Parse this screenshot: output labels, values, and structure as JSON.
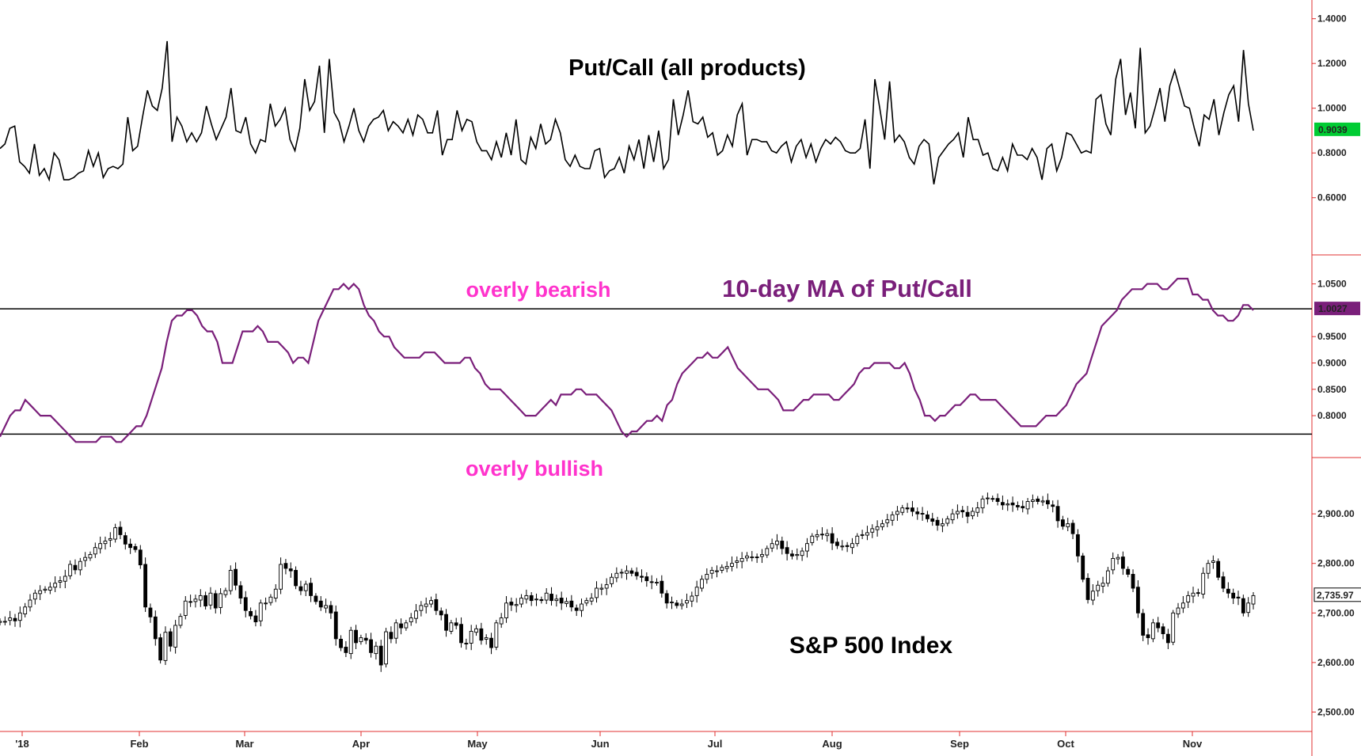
{
  "chart_data": [
    {
      "type": "line",
      "title": "Put/Call (all products)",
      "y_ticks": [
        "0.6000",
        "0.8000",
        "1.0000",
        "1.2000",
        "1.4000"
      ],
      "ylim": [
        0.5,
        1.42
      ],
      "last_value_label": "0.9039",
      "color": "#000000",
      "badge_color": "#00cc33",
      "series": [
        {
          "values": [
            0.82,
            0.84,
            0.91,
            0.92,
            0.76,
            0.74,
            0.71,
            0.84,
            0.7,
            0.73,
            0.68,
            0.8,
            0.77,
            0.68,
            0.68,
            0.69,
            0.71,
            0.72,
            0.81,
            0.74,
            0.8,
            0.69,
            0.73,
            0.74,
            0.73,
            0.75,
            0.96,
            0.81,
            0.83,
            0.96,
            1.08,
            1.01,
            0.99,
            1.09,
            1.3,
            0.85,
            0.96,
            0.92,
            0.85,
            0.89,
            0.85,
            0.89,
            1.01,
            0.93,
            0.86,
            0.91,
            0.96,
            1.09,
            0.9,
            0.89,
            0.96,
            0.84,
            0.8,
            0.86,
            0.85,
            1.02,
            0.92,
            0.95,
            1.0,
            0.86,
            0.81,
            0.91,
            1.13,
            0.99,
            1.03,
            1.19,
            0.89,
            1.22,
            0.98,
            0.94,
            0.85,
            0.92,
            1.0,
            0.9,
            0.85,
            0.92,
            0.95,
            0.96,
            0.99,
            0.9,
            0.94,
            0.92,
            0.89,
            0.95,
            0.88,
            0.97,
            0.95,
            0.89,
            0.89,
            0.99,
            0.79,
            0.86,
            0.86,
            0.99,
            0.9,
            0.95,
            0.94,
            0.85,
            0.81,
            0.81,
            0.77,
            0.85,
            0.78,
            0.89,
            0.79,
            0.95,
            0.77,
            0.75,
            0.87,
            0.82,
            0.93,
            0.84,
            0.86,
            0.95,
            0.89,
            0.77,
            0.74,
            0.79,
            0.74,
            0.73,
            0.73,
            0.81,
            0.82,
            0.69,
            0.72,
            0.73,
            0.78,
            0.71,
            0.83,
            0.77,
            0.86,
            0.73,
            0.88,
            0.76,
            0.9,
            0.73,
            0.77,
            1.04,
            0.88,
            0.97,
            1.08,
            0.94,
            0.93,
            0.96,
            0.87,
            0.89,
            0.79,
            0.81,
            0.88,
            0.83,
            0.97,
            1.02,
            0.79,
            0.86,
            0.86,
            0.85,
            0.85,
            0.81,
            0.8,
            0.83,
            0.85,
            0.76,
            0.83,
            0.86,
            0.78,
            0.84,
            0.76,
            0.82,
            0.86,
            0.84,
            0.87,
            0.85,
            0.81,
            0.8,
            0.8,
            0.82,
            0.95,
            0.73,
            1.13,
            1.0,
            0.86,
            1.12,
            0.85,
            0.88,
            0.85,
            0.78,
            0.75,
            0.83,
            0.86,
            0.84,
            0.66,
            0.78,
            0.81,
            0.84,
            0.86,
            0.89,
            0.78,
            0.96,
            0.86,
            0.86,
            0.79,
            0.8,
            0.73,
            0.72,
            0.78,
            0.72,
            0.84,
            0.79,
            0.79,
            0.77,
            0.82,
            0.78,
            0.68,
            0.82,
            0.84,
            0.72,
            0.78,
            0.89,
            0.88,
            0.84,
            0.8,
            0.81,
            0.8,
            1.04,
            1.06,
            0.93,
            0.88,
            1.13,
            1.22,
            0.97,
            1.07,
            0.91,
            1.27,
            0.89,
            0.92,
            1.0,
            1.09,
            0.94,
            1.1,
            1.17,
            1.09,
            1.01,
            1.0,
            0.91,
            0.83,
            0.97,
            0.95,
            1.04,
            0.88,
            0.98,
            1.06,
            1.1,
            0.94,
            1.26,
            1.02,
            0.9
          ]
        }
      ]
    },
    {
      "type": "line",
      "title": "10-day MA of Put/Call",
      "annotations": [
        "overly bearish",
        "overly bullish"
      ],
      "y_ticks": [
        "0.8000",
        "0.8500",
        "0.9000",
        "0.9500",
        "1.0500"
      ],
      "ylim": [
        0.74,
        1.075
      ],
      "upper_threshold": 1.0027,
      "lower_threshold": 0.765,
      "last_value_label": "1.0027",
      "color": "#7a1f7a",
      "annotation_color": "#ff33cc",
      "title_color": "#7a1f7a",
      "series": [
        {
          "values": [
            0.76,
            0.78,
            0.8,
            0.81,
            0.81,
            0.83,
            0.82,
            0.81,
            0.8,
            0.8,
            0.8,
            0.79,
            0.78,
            0.77,
            0.76,
            0.75,
            0.75,
            0.75,
            0.75,
            0.75,
            0.76,
            0.76,
            0.76,
            0.75,
            0.75,
            0.76,
            0.77,
            0.78,
            0.78,
            0.8,
            0.83,
            0.86,
            0.89,
            0.94,
            0.98,
            0.99,
            0.99,
            1.0,
            1.0,
            0.99,
            0.97,
            0.96,
            0.96,
            0.94,
            0.9,
            0.9,
            0.9,
            0.93,
            0.96,
            0.96,
            0.96,
            0.97,
            0.96,
            0.94,
            0.94,
            0.94,
            0.93,
            0.92,
            0.9,
            0.91,
            0.91,
            0.9,
            0.94,
            0.98,
            1.0,
            1.02,
            1.04,
            1.04,
            1.05,
            1.04,
            1.05,
            1.04,
            1.01,
            0.99,
            0.98,
            0.96,
            0.95,
            0.95,
            0.93,
            0.92,
            0.91,
            0.91,
            0.91,
            0.91,
            0.92,
            0.92,
            0.92,
            0.91,
            0.9,
            0.9,
            0.9,
            0.9,
            0.91,
            0.91,
            0.89,
            0.88,
            0.86,
            0.85,
            0.85,
            0.85,
            0.84,
            0.83,
            0.82,
            0.81,
            0.8,
            0.8,
            0.8,
            0.81,
            0.82,
            0.83,
            0.82,
            0.84,
            0.84,
            0.84,
            0.85,
            0.85,
            0.84,
            0.84,
            0.84,
            0.83,
            0.82,
            0.81,
            0.79,
            0.77,
            0.76,
            0.77,
            0.77,
            0.78,
            0.79,
            0.79,
            0.8,
            0.79,
            0.82,
            0.83,
            0.86,
            0.88,
            0.89,
            0.9,
            0.91,
            0.91,
            0.92,
            0.91,
            0.91,
            0.92,
            0.93,
            0.91,
            0.89,
            0.88,
            0.87,
            0.86,
            0.85,
            0.85,
            0.85,
            0.84,
            0.83,
            0.81,
            0.81,
            0.81,
            0.82,
            0.83,
            0.83,
            0.84,
            0.84,
            0.84,
            0.84,
            0.83,
            0.83,
            0.84,
            0.85,
            0.86,
            0.88,
            0.89,
            0.89,
            0.9,
            0.9,
            0.9,
            0.9,
            0.89,
            0.89,
            0.9,
            0.88,
            0.85,
            0.83,
            0.8,
            0.8,
            0.79,
            0.8,
            0.8,
            0.81,
            0.82,
            0.82,
            0.83,
            0.84,
            0.84,
            0.83,
            0.83,
            0.83,
            0.83,
            0.82,
            0.81,
            0.8,
            0.79,
            0.78,
            0.78,
            0.78,
            0.78,
            0.79,
            0.8,
            0.8,
            0.8,
            0.81,
            0.82,
            0.84,
            0.86,
            0.87,
            0.88,
            0.91,
            0.94,
            0.97,
            0.98,
            0.99,
            1.0,
            1.02,
            1.03,
            1.04,
            1.04,
            1.04,
            1.05,
            1.05,
            1.05,
            1.04,
            1.04,
            1.05,
            1.06,
            1.06,
            1.06,
            1.03,
            1.03,
            1.02,
            1.02,
            1.0,
            0.99,
            0.99,
            0.98,
            0.98,
            0.99,
            1.01,
            1.01,
            1.0
          ]
        }
      ]
    },
    {
      "type": "candlestick",
      "title": "S&P 500 Index",
      "y_ticks": [
        "2,500.00",
        "2,600.00",
        "2,700.00",
        "2,800.00",
        "2,900.00"
      ],
      "ylim": [
        2480,
        3020
      ],
      "last_value_label": "2,735.97",
      "color": "#000000",
      "x_labels": [
        "'18",
        "Feb",
        "Mar",
        "Apr",
        "May",
        "Jun",
        "Jul",
        "Aug",
        "Sep",
        "Oct",
        "Nov"
      ],
      "closes": [
        2683,
        2683,
        2690,
        2684,
        2700,
        2712,
        2726,
        2740,
        2745,
        2748,
        2752,
        2760,
        2765,
        2774,
        2798,
        2787,
        2804,
        2812,
        2818,
        2832,
        2840,
        2845,
        2850,
        2872,
        2858,
        2839,
        2832,
        2828,
        2797,
        2712,
        2692,
        2648,
        2605,
        2661,
        2633,
        2675,
        2693,
        2724,
        2722,
        2728,
        2735,
        2714,
        2740,
        2710,
        2739,
        2745,
        2786,
        2756,
        2730,
        2705,
        2694,
        2682,
        2720,
        2720,
        2732,
        2748,
        2798,
        2790,
        2785,
        2755,
        2745,
        2758,
        2735,
        2723,
        2712,
        2715,
        2700,
        2648,
        2630,
        2620,
        2665,
        2640,
        2650,
        2645,
        2620,
        2633,
        2595,
        2662,
        2648,
        2680,
        2670,
        2680,
        2690,
        2704,
        2715,
        2718,
        2725,
        2705,
        2696,
        2665,
        2680,
        2675,
        2640,
        2638,
        2663,
        2668,
        2645,
        2650,
        2630,
        2680,
        2690,
        2720,
        2716,
        2717,
        2730,
        2735,
        2725,
        2728,
        2725,
        2740,
        2725,
        2728,
        2720,
        2723,
        2712,
        2705,
        2718,
        2725,
        2730,
        2750,
        2750,
        2757,
        2772,
        2780,
        2782,
        2785,
        2780,
        2775,
        2772,
        2765,
        2762,
        2762,
        2740,
        2720,
        2722,
        2715,
        2718,
        2725,
        2734,
        2752,
        2768,
        2778,
        2786,
        2785,
        2792,
        2794,
        2800,
        2805,
        2810,
        2815,
        2813,
        2812,
        2818,
        2830,
        2840,
        2845,
        2830,
        2820,
        2815,
        2818,
        2825,
        2840,
        2855,
        2858,
        2858,
        2860,
        2841,
        2836,
        2835,
        2834,
        2840,
        2855,
        2858,
        2862,
        2870,
        2874,
        2880,
        2888,
        2898,
        2905,
        2912,
        2910,
        2905,
        2900,
        2900,
        2890,
        2885,
        2877,
        2880,
        2890,
        2900,
        2905,
        2904,
        2895,
        2905,
        2912,
        2930,
        2932,
        2930,
        2925,
        2918,
        2920,
        2918,
        2914,
        2912,
        2925,
        2928,
        2925,
        2926,
        2920,
        2915,
        2886,
        2875,
        2880,
        2860,
        2815,
        2768,
        2727,
        2744,
        2756,
        2760,
        2785,
        2810,
        2812,
        2790,
        2778,
        2750,
        2700,
        2655,
        2650,
        2680,
        2670,
        2658,
        2640,
        2700,
        2710,
        2720,
        2735,
        2740,
        2740,
        2780,
        2800,
        2805,
        2772,
        2750,
        2740,
        2730,
        2730,
        2700,
        2720,
        2735
      ]
    }
  ]
}
